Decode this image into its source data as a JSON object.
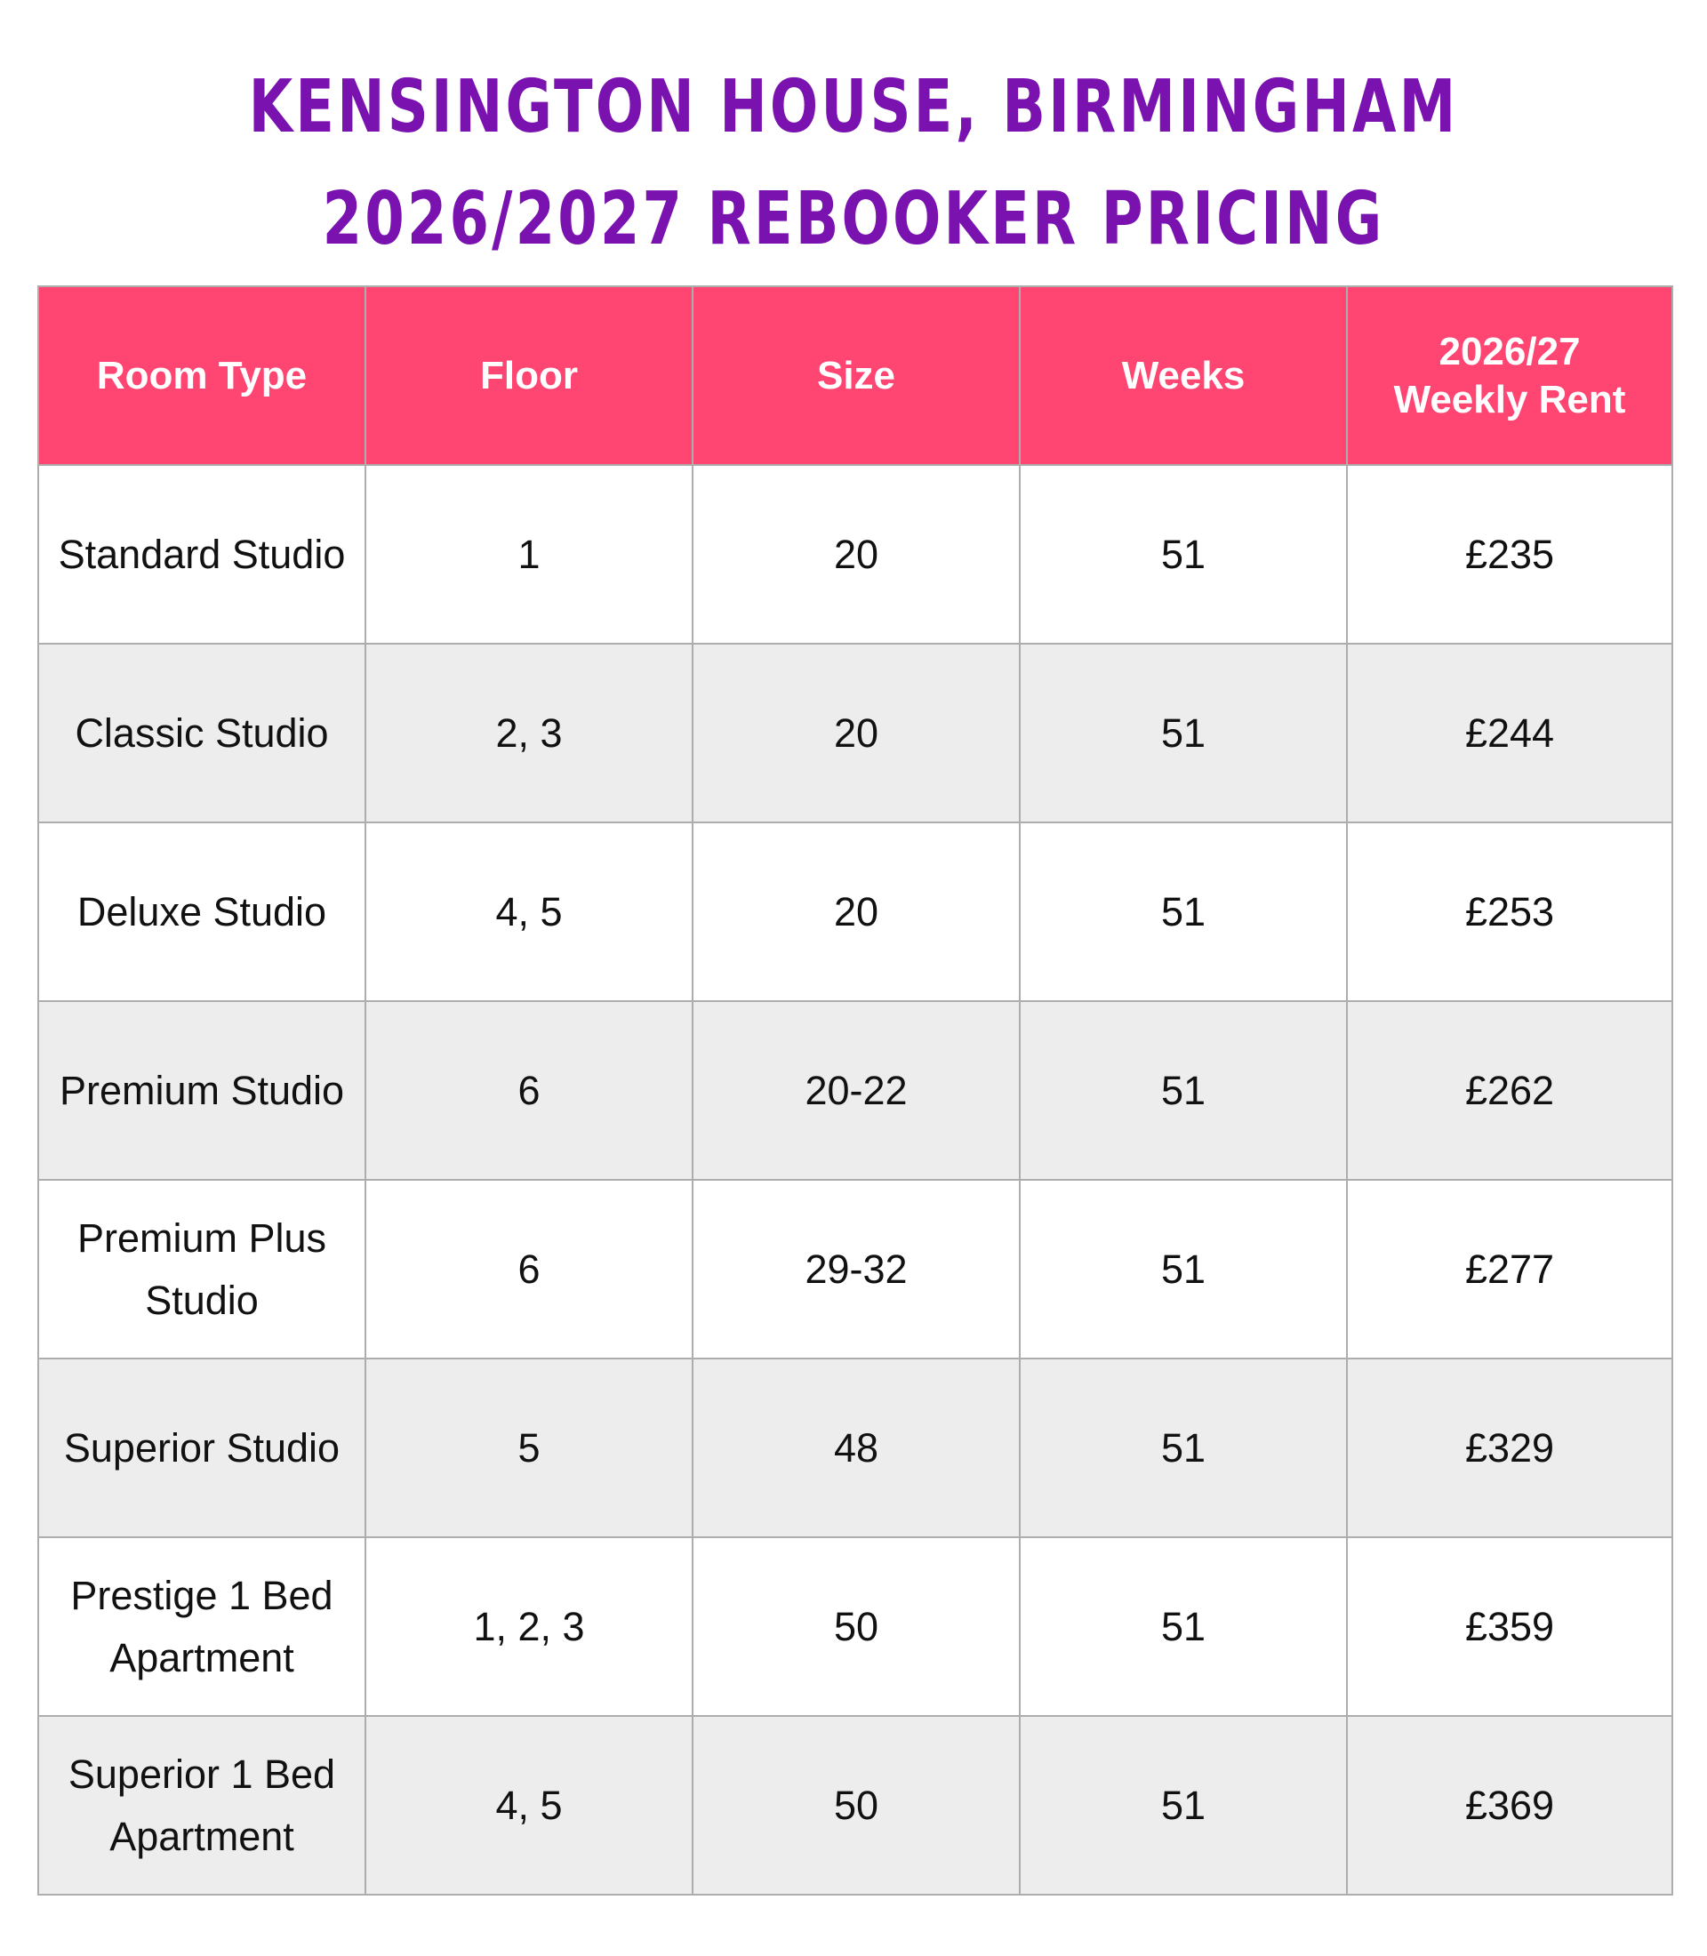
{
  "title": {
    "line1": "Kensington House, Birmingham",
    "line2": "2026/2027 Rebooker Pricing"
  },
  "table": {
    "headers": [
      "Room Type",
      "Floor",
      "Size",
      "Weeks",
      "2026/27\nWeekly Rent"
    ],
    "rows": [
      [
        "Standard Studio",
        "1",
        "20",
        "51",
        "£235"
      ],
      [
        "Classic Studio",
        "2, 3",
        "20",
        "51",
        "£244"
      ],
      [
        "Deluxe Studio",
        "4, 5",
        "20",
        "51",
        "£253"
      ],
      [
        "Premium Studio",
        "6",
        "20-22",
        "51",
        "£262"
      ],
      [
        "Premium Plus\nStudio",
        "6",
        "29-32",
        "51",
        "£277"
      ],
      [
        "Superior Studio",
        "5",
        "48",
        "51",
        "£329"
      ],
      [
        "Prestige 1 Bed\nApartment",
        "1, 2, 3",
        "50",
        "51",
        "£359"
      ],
      [
        "Superior 1 Bed\nApartment",
        "4, 5",
        "50",
        "51",
        "£369"
      ]
    ]
  },
  "colors": {
    "title": "#7a12b0",
    "header_bg": "#ff4672",
    "header_text": "#ffffff",
    "row_alt_bg": "#ededed",
    "border": "#adadad"
  }
}
